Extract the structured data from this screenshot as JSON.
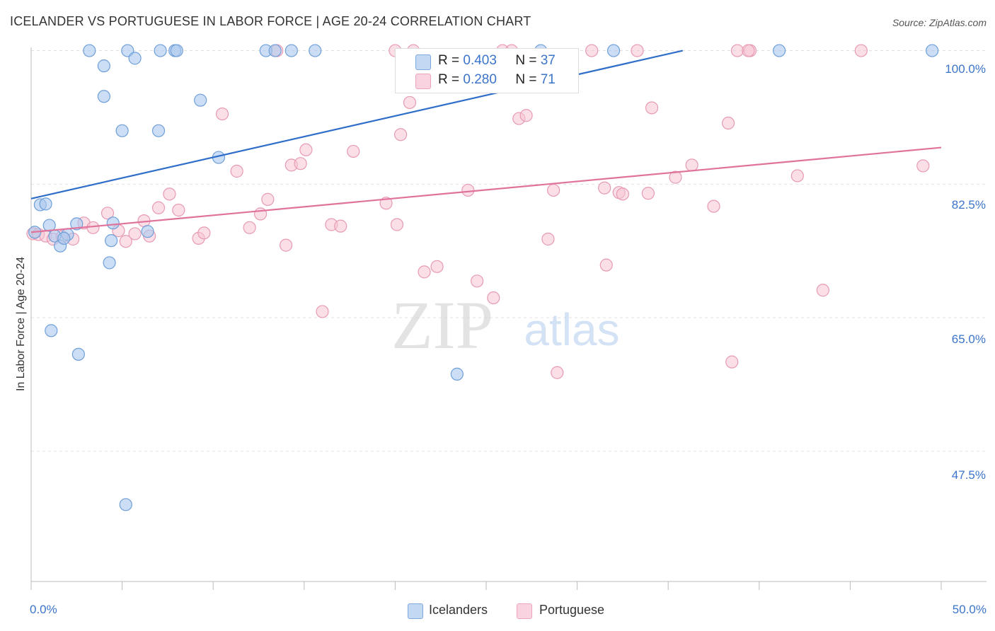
{
  "chart_data": {
    "type": "scatter",
    "title": "ICELANDER VS PORTUGUESE IN LABOR FORCE | AGE 20-24 CORRELATION CHART",
    "source": "Source: ZipAtlas.com",
    "xlabel": "",
    "ylabel": "In Labor Force | Age 20-24",
    "xlim": [
      0,
      50
    ],
    "ylim": [
      32.0,
      102.0
    ],
    "x_tick_labels": [
      "0.0%",
      "50.0%"
    ],
    "y_ticks": [
      {
        "value": 100.0,
        "label": "100.0%"
      },
      {
        "value": 82.5,
        "label": "82.5%"
      },
      {
        "value": 65.0,
        "label": "65.0%"
      },
      {
        "value": 47.5,
        "label": "47.5%"
      }
    ],
    "watermark": {
      "zip": "ZIP",
      "atlas": "atlas"
    },
    "legend": [
      {
        "name": "Icelanders",
        "r_label": "R =",
        "r": "0.403",
        "n_label": "N =",
        "n": "37"
      },
      {
        "name": "Portuguese",
        "r_label": "R =",
        "r": "0.280",
        "n_label": "N =",
        "n": "71"
      }
    ],
    "colors": {
      "icelanders_fill": "#aac8ee",
      "icelanders_stroke": "#6f9fd8",
      "icelanders_line": "#2f6ec8",
      "portuguese_fill": "#f6c4d3",
      "portuguese_stroke": "#e79ab3",
      "portuguese_line": "#e0739b",
      "tick_label": "#3b74c9"
    },
    "series": [
      {
        "name": "Icelanders",
        "trend": {
          "x": [
            0,
            35.8
          ],
          "y": [
            80.6,
            100.0
          ]
        },
        "points": [
          [
            0.2,
            76.2
          ],
          [
            0.5,
            79.8
          ],
          [
            0.8,
            79.9
          ],
          [
            1.0,
            77.1
          ],
          [
            1.3,
            75.7
          ],
          [
            1.6,
            74.4
          ],
          [
            2.0,
            75.9
          ],
          [
            2.5,
            77.3
          ],
          [
            3.2,
            100.0
          ],
          [
            4.0,
            98.0
          ],
          [
            4.0,
            94.0
          ],
          [
            4.3,
            72.2
          ],
          [
            4.4,
            75.1
          ],
          [
            4.5,
            77.4
          ],
          [
            5.0,
            89.5
          ],
          [
            5.2,
            40.5
          ],
          [
            5.3,
            100.0
          ],
          [
            5.7,
            99.0
          ],
          [
            6.4,
            76.3
          ],
          [
            7.0,
            89.5
          ],
          [
            7.1,
            100.0
          ],
          [
            7.9,
            100.0
          ],
          [
            8.0,
            100.0
          ],
          [
            9.3,
            93.5
          ],
          [
            10.3,
            86.0
          ],
          [
            12.9,
            100.0
          ],
          [
            13.4,
            100.0
          ],
          [
            14.3,
            100.0
          ],
          [
            15.6,
            100.0
          ],
          [
            23.4,
            57.6
          ],
          [
            28.0,
            100.0
          ],
          [
            32.0,
            100.0
          ],
          [
            41.1,
            100.0
          ],
          [
            49.5,
            100.0
          ],
          [
            1.1,
            63.3
          ],
          [
            2.6,
            60.2
          ],
          [
            1.8,
            75.4
          ]
        ]
      },
      {
        "name": "Portuguese",
        "trend": {
          "x": [
            0,
            50
          ],
          "y": [
            76.2,
            87.3
          ]
        },
        "points": [
          [
            0.1,
            76.0
          ],
          [
            0.4,
            75.9
          ],
          [
            0.8,
            75.7
          ],
          [
            1.2,
            75.3
          ],
          [
            1.7,
            75.6
          ],
          [
            2.3,
            75.3
          ],
          [
            2.9,
            77.4
          ],
          [
            3.4,
            76.8
          ],
          [
            4.2,
            78.7
          ],
          [
            4.8,
            76.4
          ],
          [
            5.2,
            75.0
          ],
          [
            5.7,
            76.0
          ],
          [
            6.2,
            77.7
          ],
          [
            6.5,
            75.7
          ],
          [
            7.0,
            79.4
          ],
          [
            7.6,
            81.2
          ],
          [
            8.1,
            79.1
          ],
          [
            9.2,
            75.4
          ],
          [
            9.5,
            76.1
          ],
          [
            10.5,
            91.7
          ],
          [
            11.3,
            84.2
          ],
          [
            12.0,
            76.8
          ],
          [
            12.6,
            78.6
          ],
          [
            13.0,
            80.5
          ],
          [
            14.0,
            74.5
          ],
          [
            14.3,
            85.0
          ],
          [
            14.8,
            85.2
          ],
          [
            15.1,
            87.0
          ],
          [
            16.0,
            65.8
          ],
          [
            16.5,
            77.2
          ],
          [
            17.0,
            77.0
          ],
          [
            17.7,
            86.8
          ],
          [
            19.5,
            80.0
          ],
          [
            20.1,
            77.2
          ],
          [
            20.3,
            89.0
          ],
          [
            20.8,
            93.2
          ],
          [
            21.0,
            100.0
          ],
          [
            21.6,
            71.0
          ],
          [
            22.3,
            71.7
          ],
          [
            24.0,
            81.7
          ],
          [
            24.5,
            69.8
          ],
          [
            25.4,
            67.6
          ],
          [
            25.9,
            100.0
          ],
          [
            26.8,
            91.1
          ],
          [
            27.2,
            91.5
          ],
          [
            28.4,
            75.3
          ],
          [
            28.7,
            81.7
          ],
          [
            28.9,
            57.8
          ],
          [
            30.8,
            100.0
          ],
          [
            31.5,
            82.0
          ],
          [
            31.6,
            71.9
          ],
          [
            32.3,
            81.4
          ],
          [
            32.5,
            81.2
          ],
          [
            33.3,
            100.0
          ],
          [
            33.9,
            81.3
          ],
          [
            34.1,
            92.5
          ],
          [
            35.4,
            83.4
          ],
          [
            36.3,
            85.0
          ],
          [
            37.5,
            79.6
          ],
          [
            38.3,
            90.5
          ],
          [
            38.5,
            59.2
          ],
          [
            38.8,
            100.0
          ],
          [
            39.5,
            100.0
          ],
          [
            42.1,
            83.6
          ],
          [
            43.5,
            68.6
          ],
          [
            45.6,
            100.0
          ],
          [
            49.0,
            84.9
          ],
          [
            20.0,
            100.0
          ],
          [
            26.4,
            100.0
          ],
          [
            39.4,
            100.0
          ],
          [
            13.5,
            100.0
          ]
        ]
      }
    ]
  }
}
